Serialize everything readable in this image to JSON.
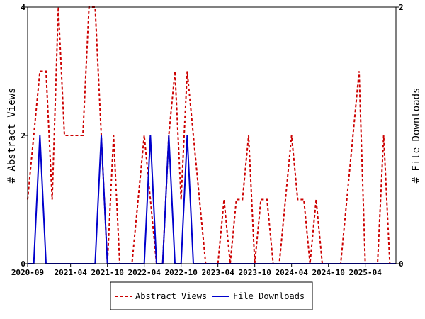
{
  "chart_data": {
    "type": "line",
    "title": "",
    "ylabel_left": "# Abstract Views",
    "ylabel_right": "# File Downloads",
    "x_tick_labels": [
      "2020-09",
      "2021-04",
      "2021-10",
      "2022-04",
      "2022-10",
      "2023-04",
      "2023-10",
      "2024-04",
      "2024-10",
      "2025-04"
    ],
    "ylim_left": [
      0,
      4
    ],
    "ylim_right": [
      0,
      2
    ],
    "left_tick_labels": [
      "0",
      "2",
      "4"
    ],
    "right_tick_labels": [
      "0",
      "2"
    ],
    "legend_position": "bottom",
    "grid": false,
    "x_months": [
      "2020-09",
      "2020-10",
      "2020-11",
      "2020-12",
      "2021-01",
      "2021-02",
      "2021-03",
      "2021-04",
      "2021-05",
      "2021-06",
      "2021-07",
      "2021-08",
      "2021-09",
      "2021-10",
      "2021-11",
      "2021-12",
      "2022-01",
      "2022-02",
      "2022-03",
      "2022-04",
      "2022-05",
      "2022-06",
      "2022-07",
      "2022-08",
      "2022-09",
      "2022-10",
      "2022-11",
      "2022-12",
      "2023-01",
      "2023-02",
      "2023-03",
      "2023-04",
      "2023-05",
      "2023-06",
      "2023-07",
      "2023-08",
      "2023-09",
      "2023-10",
      "2023-11",
      "2023-12",
      "2024-01",
      "2024-02",
      "2024-03",
      "2024-04",
      "2024-05",
      "2024-06",
      "2024-07",
      "2024-08",
      "2024-09",
      "2024-10",
      "2024-11",
      "2024-12",
      "2025-01",
      "2025-02",
      "2025-03",
      "2025-04",
      "2025-05",
      "2025-06",
      "2025-07",
      "2025-08",
      "2025-09"
    ],
    "series": [
      {
        "name": "Abstract Views",
        "axis": "left",
        "color": "#cc0000",
        "dash": true,
        "values": [
          1,
          2,
          3,
          3,
          1,
          4,
          2,
          2,
          2,
          2,
          4,
          4,
          2,
          0,
          2,
          0,
          0,
          0,
          1,
          2,
          1,
          0,
          0,
          2,
          3,
          1,
          3,
          2,
          1,
          0,
          0,
          0,
          1,
          0,
          1,
          1,
          2,
          0,
          1,
          1,
          0,
          0,
          1,
          2,
          1,
          1,
          0,
          1,
          0,
          0,
          0,
          0,
          1,
          2,
          3,
          0,
          0,
          0,
          2,
          0
        ],
        "months": [
          "2020-09",
          "2020-10",
          "2020-11",
          "2020-12",
          "2021-01",
          "2021-02",
          "2021-03",
          "2021-04",
          "2021-05",
          "2021-06",
          "2021-07",
          "2021-08",
          "2021-09",
          "2021-10",
          "2021-11",
          "2021-12",
          "2022-01",
          "2022-02",
          "2022-03",
          "2022-04",
          "2022-05",
          "2022-06",
          "2022-07",
          "2022-08",
          "2022-09",
          "2022-10",
          "2022-11",
          "2022-12",
          "2023-01",
          "2023-02",
          "2023-03",
          "2023-04",
          "2023-05",
          "2023-06",
          "2023-07",
          "2023-08",
          "2023-09",
          "2023-10",
          "2023-11",
          "2023-12",
          "2024-01",
          "2024-02",
          "2024-03",
          "2024-04",
          "2024-05",
          "2024-06",
          "2024-07",
          "2024-08",
          "2024-09",
          "2024-10",
          "2024-11",
          "2024-12",
          "2025-01",
          "2025-02",
          "2025-03",
          "2025-04",
          "2025-05",
          "2025-06",
          "2025-07",
          "2025-08"
        ]
      },
      {
        "name": "File Downloads",
        "axis": "right",
        "color": "#0000cc",
        "dash": false,
        "values": [
          0,
          0,
          1,
          0,
          0,
          0,
          0,
          0,
          0,
          0,
          0,
          0,
          1,
          0,
          0,
          0,
          0,
          0,
          0,
          0,
          1,
          0,
          0,
          1,
          0,
          0,
          1,
          0,
          0,
          0,
          0,
          0,
          0,
          0,
          0,
          0,
          0,
          0,
          0,
          0,
          0,
          0,
          0,
          0,
          0,
          0,
          0,
          0,
          0,
          0,
          0,
          0,
          0,
          0,
          0,
          0,
          0,
          0,
          0,
          0,
          0
        ],
        "months": [
          "2020-09",
          "2020-10",
          "2020-11",
          "2020-12",
          "2021-01",
          "2021-02",
          "2021-03",
          "2021-04",
          "2021-05",
          "2021-06",
          "2021-07",
          "2021-08",
          "2021-09",
          "2021-10",
          "2021-11",
          "2021-12",
          "2022-01",
          "2022-02",
          "2022-03",
          "2022-04",
          "2022-05",
          "2022-06",
          "2022-07",
          "2022-08",
          "2022-09",
          "2022-10",
          "2022-11",
          "2022-12",
          "2023-01",
          "2023-02",
          "2023-03",
          "2023-04",
          "2023-05",
          "2023-06",
          "2023-07",
          "2023-08",
          "2023-09",
          "2023-10",
          "2023-11",
          "2023-12",
          "2024-01",
          "2024-02",
          "2024-03",
          "2024-04",
          "2024-05",
          "2024-06",
          "2024-07",
          "2024-08",
          "2024-09",
          "2024-10",
          "2024-11",
          "2024-12",
          "2025-01",
          "2025-02",
          "2025-03",
          "2025-04",
          "2025-05",
          "2025-06",
          "2025-07",
          "2025-08",
          "2025-09"
        ]
      }
    ]
  }
}
